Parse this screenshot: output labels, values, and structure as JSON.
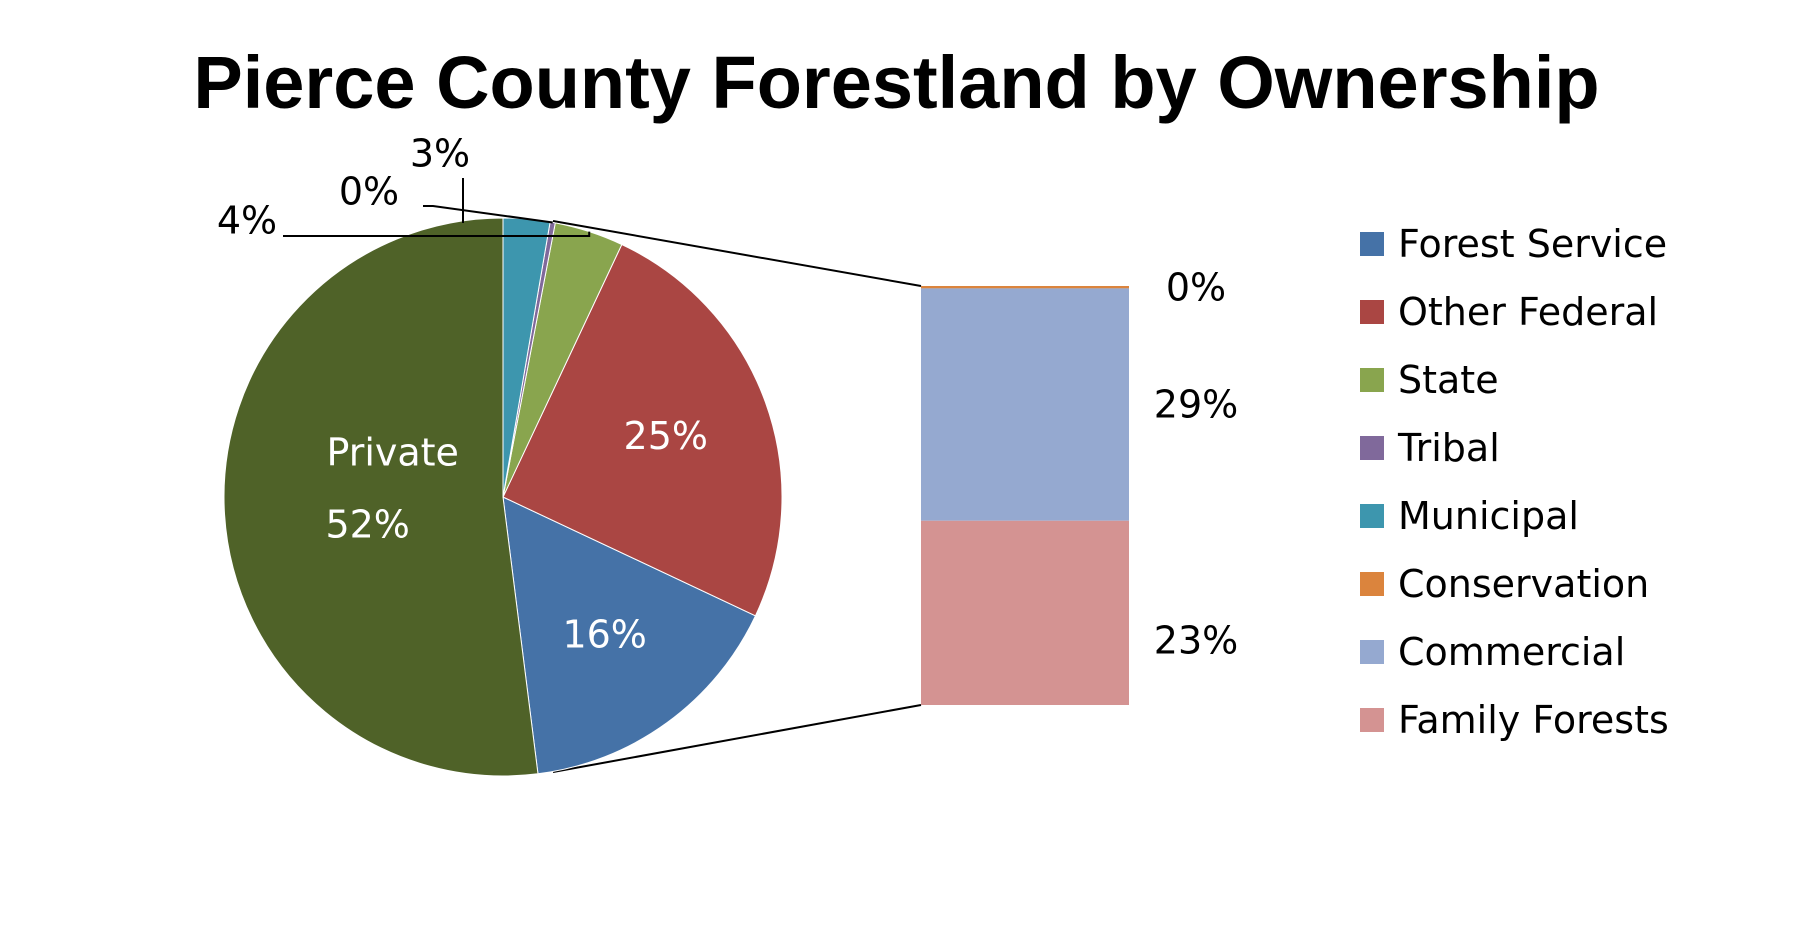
{
  "chart_data": {
    "type": "pie",
    "title": "Pierce County Forestland by Ownership",
    "slices": [
      {
        "name": "Forest Service",
        "value": 16,
        "label": "16%",
        "color": "#4572A7"
      },
      {
        "name": "Other Federal",
        "value": 25,
        "label": "25%",
        "color": "#AA4643"
      },
      {
        "name": "State",
        "value": 4,
        "label": "4%",
        "color": "#89A54E"
      },
      {
        "name": "Tribal",
        "value": 0.3,
        "label": "0%",
        "color": "#80699B"
      },
      {
        "name": "Municipal",
        "value": 2.7,
        "label": "3%",
        "color": "#3D96AE"
      },
      {
        "name": "Private",
        "value": 52,
        "label": "52%",
        "color": "#4F6228"
      }
    ],
    "private_label": "Private",
    "breakdown": {
      "of": "Private",
      "type": "stacked-bar",
      "segments": [
        {
          "name": "Conservation",
          "value": 0.3,
          "label": "0%",
          "color": "#DB843D"
        },
        {
          "name": "Commercial",
          "value": 29,
          "label": "29%",
          "color": "#95A9D0"
        },
        {
          "name": "Family Forests",
          "value": 23,
          "label": "23%",
          "color": "#D49392"
        }
      ]
    },
    "legend": {
      "placement": "right",
      "items": [
        {
          "label": "Forest Service",
          "color": "#4572A7"
        },
        {
          "label": "Other Federal",
          "color": "#AA4643"
        },
        {
          "label": "State",
          "color": "#89A54E"
        },
        {
          "label": "Tribal",
          "color": "#80699B"
        },
        {
          "label": "Municipal",
          "color": "#3D96AE"
        },
        {
          "label": "Conservation",
          "color": "#DB843D"
        },
        {
          "label": "Commercial",
          "color": "#95A9D0"
        },
        {
          "label": "Family Forests",
          "color": "#D49392"
        }
      ]
    }
  }
}
